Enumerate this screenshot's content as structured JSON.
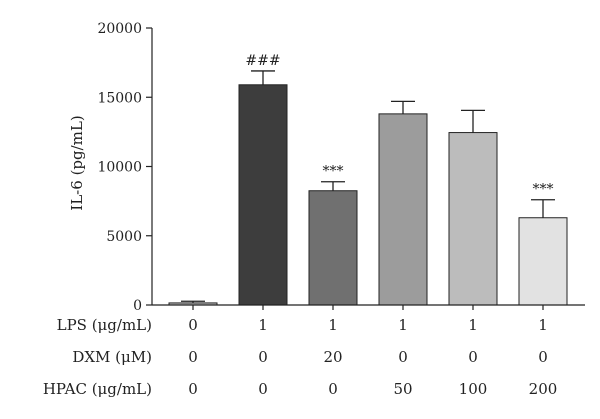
{
  "chart_data": {
    "type": "bar",
    "ylabel": "IL-6 (pg/mL)",
    "ylim": [
      0,
      20000
    ],
    "yticks": [
      0,
      5000,
      10000,
      15000,
      20000
    ],
    "grid": false,
    "bars": [
      {
        "value": 150,
        "error": 120,
        "color": "#bdbdbd",
        "annotation": ""
      },
      {
        "value": 15900,
        "error": 1000,
        "color": "#3d3d3d",
        "annotation": "###"
      },
      {
        "value": 8250,
        "error": 650,
        "color": "#707070",
        "annotation": "***"
      },
      {
        "value": 13800,
        "error": 900,
        "color": "#9c9c9c",
        "annotation": ""
      },
      {
        "value": 12450,
        "error": 1600,
        "color": "#bcbcbc",
        "annotation": ""
      },
      {
        "value": 6300,
        "error": 1300,
        "color": "#e2e2e2",
        "annotation": "***"
      }
    ],
    "conditions": [
      {
        "label": "LPS (μg/mL)",
        "values": [
          "0",
          "1",
          "1",
          "1",
          "1",
          "1"
        ]
      },
      {
        "label": "DXM (μM)",
        "values": [
          "0",
          "0",
          "20",
          "0",
          "0",
          "0"
        ]
      },
      {
        "label": "HPAC (μg/mL)",
        "values": [
          "0",
          "0",
          "0",
          "50",
          "100",
          "200"
        ]
      }
    ]
  }
}
